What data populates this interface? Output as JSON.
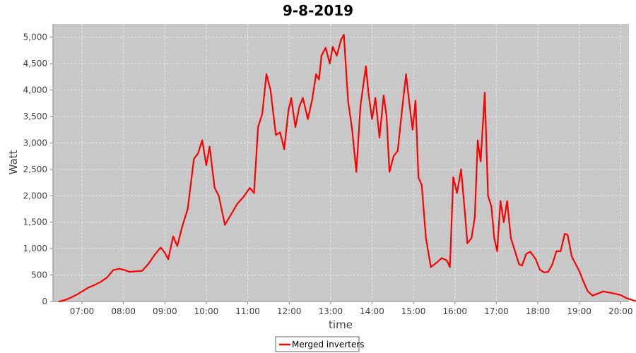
{
  "chart_data": {
    "type": "line",
    "title": "9-8-2019",
    "xlabel": "time",
    "ylabel": "Watt",
    "x_unit": "time of day (hours)",
    "xlim": [
      6.3,
      20.2
    ],
    "ylim": [
      0,
      5250
    ],
    "x_ticks": [
      {
        "value": 7,
        "label": "07:00"
      },
      {
        "value": 8,
        "label": "08:00"
      },
      {
        "value": 9,
        "label": "09:00"
      },
      {
        "value": 10,
        "label": "10:00"
      },
      {
        "value": 11,
        "label": "11:00"
      },
      {
        "value": 12,
        "label": "12:00"
      },
      {
        "value": 13,
        "label": "13:00"
      },
      {
        "value": 14,
        "label": "14:00"
      },
      {
        "value": 15,
        "label": "15:00"
      },
      {
        "value": 16,
        "label": "16:00"
      },
      {
        "value": 17,
        "label": "17:00"
      },
      {
        "value": 18,
        "label": "18:00"
      },
      {
        "value": 19,
        "label": "19:00"
      },
      {
        "value": 20,
        "label": "20:00"
      }
    ],
    "y_ticks": [
      {
        "value": 0,
        "label": "0"
      },
      {
        "value": 500,
        "label": "500"
      },
      {
        "value": 1000,
        "label": "1,000"
      },
      {
        "value": 1500,
        "label": "1,500"
      },
      {
        "value": 2000,
        "label": "2,000"
      },
      {
        "value": 2500,
        "label": "2,500"
      },
      {
        "value": 3000,
        "label": "3,000"
      },
      {
        "value": 3500,
        "label": "3,500"
      },
      {
        "value": 4000,
        "label": "4,000"
      },
      {
        "value": 4500,
        "label": "4,500"
      },
      {
        "value": 5000,
        "label": "5,000"
      }
    ],
    "grid": true,
    "legend_position": "bottom-center",
    "colors": {
      "plot_background": "#c8c8c8",
      "grid": "#e6e6e6",
      "series": "#ff0000"
    },
    "series": [
      {
        "name": "Merged inverters",
        "points": [
          [
            6.45,
            0
          ],
          [
            6.6,
            30
          ],
          [
            6.75,
            80
          ],
          [
            6.9,
            140
          ],
          [
            7.0,
            190
          ],
          [
            7.15,
            260
          ],
          [
            7.3,
            310
          ],
          [
            7.45,
            370
          ],
          [
            7.6,
            450
          ],
          [
            7.75,
            590
          ],
          [
            7.9,
            620
          ],
          [
            8.0,
            600
          ],
          [
            8.15,
            560
          ],
          [
            8.3,
            570
          ],
          [
            8.45,
            580
          ],
          [
            8.6,
            710
          ],
          [
            8.75,
            880
          ],
          [
            8.9,
            1020
          ],
          [
            9.0,
            920
          ],
          [
            9.08,
            800
          ],
          [
            9.2,
            1230
          ],
          [
            9.3,
            1050
          ],
          [
            9.42,
            1420
          ],
          [
            9.55,
            1750
          ],
          [
            9.7,
            2700
          ],
          [
            9.8,
            2800
          ],
          [
            9.9,
            3050
          ],
          [
            10.0,
            2580
          ],
          [
            10.08,
            2930
          ],
          [
            10.2,
            2150
          ],
          [
            10.3,
            2000
          ],
          [
            10.45,
            1450
          ],
          [
            10.6,
            1650
          ],
          [
            10.75,
            1850
          ],
          [
            10.9,
            1980
          ],
          [
            11.05,
            2150
          ],
          [
            11.15,
            2050
          ],
          [
            11.25,
            3300
          ],
          [
            11.35,
            3550
          ],
          [
            11.45,
            4300
          ],
          [
            11.55,
            4000
          ],
          [
            11.68,
            3150
          ],
          [
            11.78,
            3200
          ],
          [
            11.88,
            2880
          ],
          [
            11.98,
            3600
          ],
          [
            12.05,
            3850
          ],
          [
            12.15,
            3300
          ],
          [
            12.25,
            3700
          ],
          [
            12.33,
            3850
          ],
          [
            12.45,
            3450
          ],
          [
            12.55,
            3800
          ],
          [
            12.65,
            4300
          ],
          [
            12.72,
            4200
          ],
          [
            12.78,
            4650
          ],
          [
            12.88,
            4800
          ],
          [
            12.98,
            4500
          ],
          [
            13.05,
            4820
          ],
          [
            13.15,
            4650
          ],
          [
            13.25,
            4950
          ],
          [
            13.32,
            5050
          ],
          [
            13.42,
            3800
          ],
          [
            13.52,
            3250
          ],
          [
            13.62,
            2450
          ],
          [
            13.72,
            3700
          ],
          [
            13.85,
            4450
          ],
          [
            13.92,
            3900
          ],
          [
            14.0,
            3450
          ],
          [
            14.08,
            3850
          ],
          [
            14.18,
            3100
          ],
          [
            14.28,
            3900
          ],
          [
            14.35,
            3500
          ],
          [
            14.42,
            2450
          ],
          [
            14.52,
            2750
          ],
          [
            14.62,
            2850
          ],
          [
            14.72,
            3600
          ],
          [
            14.82,
            4300
          ],
          [
            14.9,
            3750
          ],
          [
            14.98,
            3250
          ],
          [
            15.05,
            3800
          ],
          [
            15.12,
            2350
          ],
          [
            15.2,
            2200
          ],
          [
            15.3,
            1200
          ],
          [
            15.42,
            650
          ],
          [
            15.55,
            730
          ],
          [
            15.68,
            820
          ],
          [
            15.8,
            780
          ],
          [
            15.88,
            650
          ],
          [
            15.96,
            2350
          ],
          [
            16.05,
            2050
          ],
          [
            16.15,
            2500
          ],
          [
            16.25,
            1600
          ],
          [
            16.3,
            1100
          ],
          [
            16.4,
            1200
          ],
          [
            16.48,
            1600
          ],
          [
            16.55,
            3050
          ],
          [
            16.62,
            2650
          ],
          [
            16.72,
            3950
          ],
          [
            16.8,
            2000
          ],
          [
            16.88,
            1800
          ],
          [
            16.95,
            1200
          ],
          [
            17.02,
            950
          ],
          [
            17.1,
            1900
          ],
          [
            17.18,
            1500
          ],
          [
            17.26,
            1900
          ],
          [
            17.35,
            1200
          ],
          [
            17.45,
            950
          ],
          [
            17.55,
            700
          ],
          [
            17.62,
            680
          ],
          [
            17.72,
            900
          ],
          [
            17.82,
            940
          ],
          [
            17.95,
            800
          ],
          [
            18.05,
            600
          ],
          [
            18.15,
            550
          ],
          [
            18.25,
            560
          ],
          [
            18.35,
            700
          ],
          [
            18.45,
            950
          ],
          [
            18.55,
            950
          ],
          [
            18.65,
            1280
          ],
          [
            18.72,
            1260
          ],
          [
            18.82,
            850
          ],
          [
            18.92,
            700
          ],
          [
            19.0,
            580
          ],
          [
            19.1,
            380
          ],
          [
            19.2,
            200
          ],
          [
            19.32,
            110
          ],
          [
            19.45,
            150
          ],
          [
            19.58,
            190
          ],
          [
            19.72,
            170
          ],
          [
            19.85,
            150
          ],
          [
            20.0,
            120
          ],
          [
            20.15,
            60
          ],
          [
            20.35,
            10
          ]
        ]
      }
    ]
  }
}
